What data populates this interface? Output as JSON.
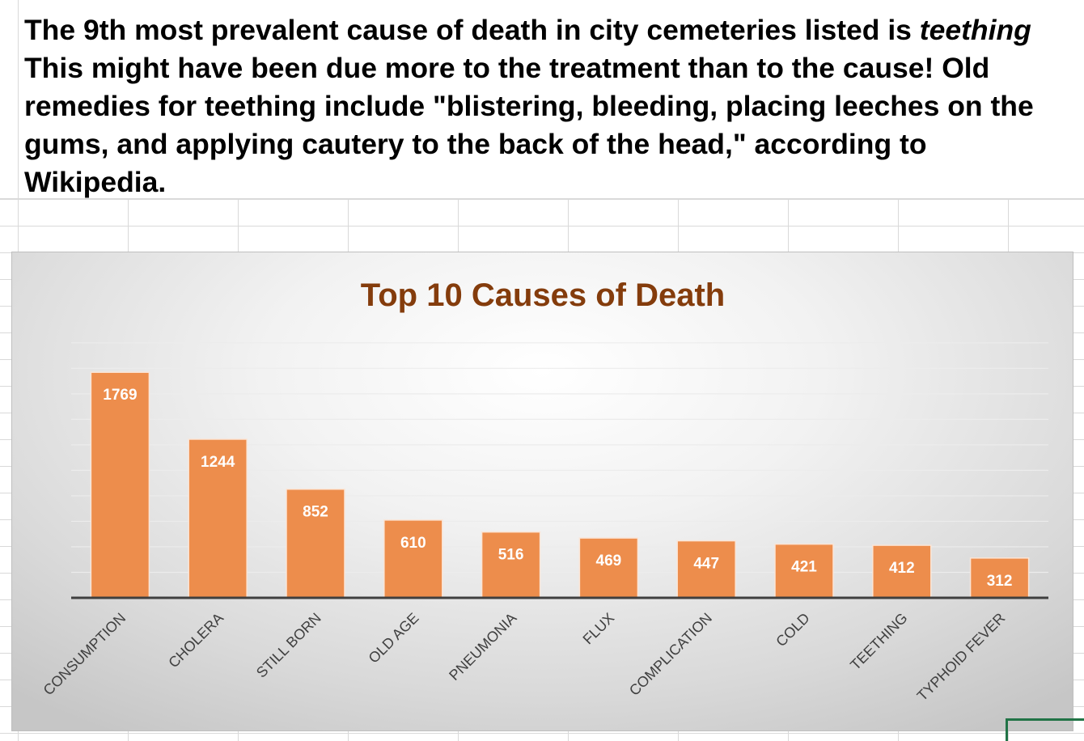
{
  "note": {
    "line1_prefix": "The 9th most prevalent cause of death in city cemeteries listed is ",
    "line1_emphasis": "teething",
    "line2": "This might have been due more to the treatment than to the cause! Old",
    "line3": "remedies for teething include \"blistering, bleeding, placing leeches on the",
    "line4": "gums, and applying cautery to the back of the head,\" according to",
    "line5": "Wikipedia."
  },
  "colors": {
    "bar": "#ed8d4c",
    "title": "#843c0c",
    "selection": "#217346"
  },
  "chart_data": {
    "type": "bar",
    "title": "Top 10 Causes of Death",
    "categories": [
      "CONSUMPTION",
      "CHOLERA",
      "STILL BORN",
      "OLD AGE",
      "PNEUMONIA",
      "FLUX",
      "COMPLICATION",
      "COLD",
      "TEETHING",
      "TYPHOID FEVER"
    ],
    "values": [
      1769,
      1244,
      852,
      610,
      516,
      469,
      447,
      421,
      412,
      312
    ],
    "ylim": [
      0,
      2000
    ],
    "grid": true,
    "legend": "none",
    "xlabel": "",
    "ylabel": ""
  }
}
